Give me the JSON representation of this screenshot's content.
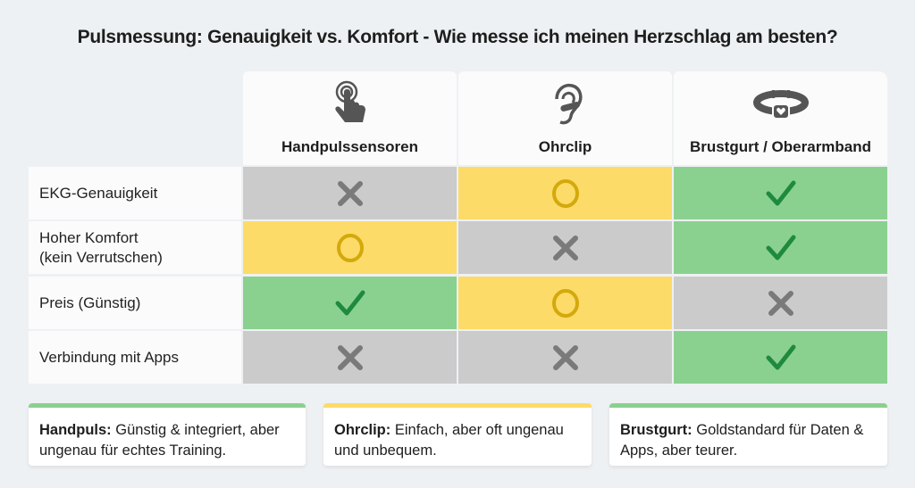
{
  "title": "Pulsmessung: Genauigkeit vs. Komfort - Wie messe ich meinen Herzschlag am besten?",
  "colors": {
    "gray": "#cbcbcb",
    "yellow": "#fcdb68",
    "green": "#8ad18f",
    "gray_mark": "#7a7a7a",
    "yellow_mark": "#d4a90c",
    "green_mark": "#1f8a3e",
    "background": "#eef1f3"
  },
  "columns": [
    {
      "label": "Handpulssensoren",
      "icon": "touch-hand-icon"
    },
    {
      "label": "Ohrclip",
      "icon": "ear-clip-icon"
    },
    {
      "label": "Brustgurt / Oberarmband",
      "icon": "chest-strap-icon"
    }
  ],
  "rows": [
    {
      "label": "EKG-Genauigkeit",
      "marks": [
        "cross",
        "circle",
        "check"
      ]
    },
    {
      "label": "Hoher Komfort\n(kein Verrutschen)",
      "marks": [
        "circle",
        "cross",
        "check"
      ]
    },
    {
      "label": "Preis (Günstig)",
      "marks": [
        "check",
        "circle",
        "cross"
      ]
    },
    {
      "label": "Verbindung mit Apps",
      "marks": [
        "cross",
        "cross",
        "check"
      ]
    }
  ],
  "cards": [
    {
      "bold": "Handpuls:",
      "text": " Günstig & integriert, aber ungenau für echtes Training.",
      "accent": "green"
    },
    {
      "bold": "Ohrclip:",
      "text": " Einfach, aber oft ungenau und unbequem.",
      "accent": "yellow"
    },
    {
      "bold": "Brustgurt:",
      "text": " Goldstandard für Daten & Apps, aber teurer.",
      "accent": "green"
    }
  ]
}
